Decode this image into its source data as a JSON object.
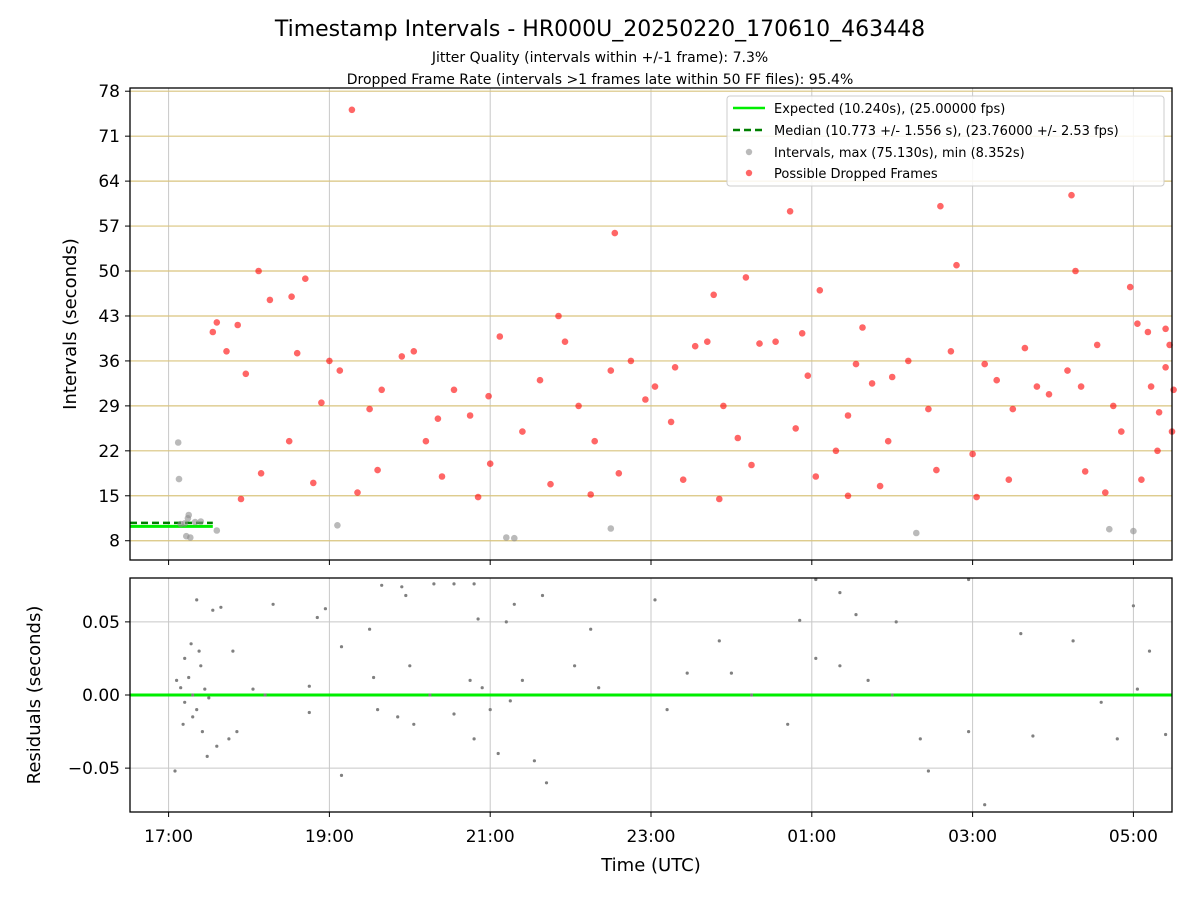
{
  "chart_data": [
    {
      "type": "scatter",
      "title": "Timestamp Intervals - HR000U_20250220_170610_463448",
      "subtitle_lines": [
        "Jitter Quality (intervals within +/-1 frame): 7.3%",
        "Dropped Frame Rate (intervals >1 frames late within 50 FF files): 95.4%"
      ],
      "xlabel": "",
      "ylabel": "Intervals (seconds)",
      "ylim": [
        5,
        78.5
      ],
      "yticks": [
        8,
        15,
        22,
        29,
        36,
        43,
        50,
        57,
        64,
        71,
        78
      ],
      "x_unit": "hours since 17:00 UTC",
      "xlim": [
        -0.48,
        12.48
      ],
      "grid": true,
      "legend_position": "top-right",
      "expected_interval": 10.24,
      "median_interval": 10.773,
      "legend": [
        {
          "label": "Expected (10.240s), (25.00000 fps)",
          "style": "solid-line",
          "color": "#00ee00"
        },
        {
          "label": "Median (10.773 +/- 1.556 s), (23.76000 +/- 2.53 fps)",
          "style": "dashed-line",
          "color": "#008000"
        },
        {
          "label": "Intervals, max (75.130s), min (8.352s)",
          "style": "marker",
          "color": "#8c8c8c"
        },
        {
          "label": "Possible Dropped Frames",
          "style": "marker",
          "color": "#ff0000"
        }
      ],
      "series": [
        {
          "name": "Intervals, max (75.130s), min (8.352s)",
          "color": "#8c8c8c",
          "points": [
            [
              0.12,
              23.3
            ],
            [
              0.13,
              17.6
            ],
            [
              0.25,
              12.0
            ],
            [
              0.24,
              11.5
            ],
            [
              0.22,
              8.7
            ],
            [
              0.27,
              8.5
            ],
            [
              0.15,
              10.6
            ],
            [
              0.2,
              10.7
            ],
            [
              0.33,
              10.9
            ],
            [
              0.4,
              11.0
            ],
            [
              0.6,
              9.6
            ],
            [
              2.1,
              10.4
            ],
            [
              4.2,
              8.5
            ],
            [
              4.3,
              8.4
            ],
            [
              5.5,
              9.9
            ],
            [
              9.3,
              9.2
            ],
            [
              11.7,
              9.8
            ],
            [
              12.0,
              9.5
            ]
          ]
        },
        {
          "name": "Possible Dropped Frames",
          "color": "#ff0000",
          "points": [
            [
              0.55,
              40.5
            ],
            [
              0.6,
              42.0
            ],
            [
              0.72,
              37.5
            ],
            [
              0.86,
              41.6
            ],
            [
              0.96,
              34.0
            ],
            [
              1.12,
              50.0
            ],
            [
              1.26,
              45.5
            ],
            [
              1.5,
              23.5
            ],
            [
              1.53,
              46.0
            ],
            [
              1.6,
              37.2
            ],
            [
              1.7,
              48.8
            ],
            [
              1.9,
              29.5
            ],
            [
              2.0,
              36.0
            ],
            [
              2.13,
              34.5
            ],
            [
              2.28,
              75.1
            ],
            [
              2.5,
              28.5
            ],
            [
              2.65,
              31.5
            ],
            [
              2.9,
              36.7
            ],
            [
              3.05,
              37.5
            ],
            [
              3.2,
              23.5
            ],
            [
              3.35,
              27.0
            ],
            [
              3.55,
              31.5
            ],
            [
              3.75,
              27.5
            ],
            [
              3.98,
              30.5
            ],
            [
              4.12,
              39.8
            ],
            [
              4.4,
              25.0
            ],
            [
              4.62,
              33.0
            ],
            [
              4.85,
              43.0
            ],
            [
              4.93,
              39.0
            ],
            [
              5.1,
              29.0
            ],
            [
              5.3,
              23.5
            ],
            [
              5.5,
              34.5
            ],
            [
              5.55,
              55.9
            ],
            [
              5.75,
              36.0
            ],
            [
              5.93,
              30.0
            ],
            [
              6.05,
              32.0
            ],
            [
              6.25,
              26.5
            ],
            [
              6.3,
              35.0
            ],
            [
              6.55,
              38.3
            ],
            [
              6.7,
              39.0
            ],
            [
              6.78,
              46.3
            ],
            [
              6.9,
              29.0
            ],
            [
              7.08,
              24.0
            ],
            [
              7.18,
              49.0
            ],
            [
              7.35,
              38.7
            ],
            [
              7.55,
              39.0
            ],
            [
              7.73,
              59.3
            ],
            [
              7.8,
              25.5
            ],
            [
              7.88,
              40.3
            ],
            [
              7.95,
              33.7
            ],
            [
              8.1,
              47.0
            ],
            [
              8.3,
              22.0
            ],
            [
              8.45,
              27.5
            ],
            [
              8.55,
              35.5
            ],
            [
              8.63,
              41.2
            ],
            [
              8.75,
              32.5
            ],
            [
              8.95,
              23.5
            ],
            [
              9.0,
              33.5
            ],
            [
              9.2,
              36.0
            ],
            [
              9.45,
              28.5
            ],
            [
              9.6,
              60.1
            ],
            [
              9.73,
              37.5
            ],
            [
              9.8,
              50.9
            ],
            [
              10.0,
              21.5
            ],
            [
              10.15,
              35.5
            ],
            [
              10.3,
              33.0
            ],
            [
              10.5,
              28.5
            ],
            [
              10.65,
              38.0
            ],
            [
              10.8,
              32.0
            ],
            [
              10.95,
              30.8
            ],
            [
              11.18,
              34.5
            ],
            [
              11.23,
              61.8
            ],
            [
              11.28,
              50.0
            ],
            [
              11.35,
              32.0
            ],
            [
              11.55,
              38.5
            ],
            [
              11.75,
              29.0
            ],
            [
              11.85,
              25.0
            ],
            [
              11.96,
              47.5
            ],
            [
              12.05,
              41.8
            ],
            [
              12.18,
              40.5
            ],
            [
              12.22,
              32.0
            ],
            [
              12.32,
              28.0
            ],
            [
              12.4,
              41.0
            ],
            [
              12.45,
              38.5
            ],
            [
              12.5,
              31.5
            ],
            [
              12.4,
              35.0
            ],
            [
              12.48,
              25.0
            ],
            [
              12.3,
              22.0
            ],
            [
              1.15,
              18.5
            ],
            [
              1.8,
              17.0
            ],
            [
              2.6,
              19.0
            ],
            [
              3.4,
              18.0
            ],
            [
              4.0,
              20.0
            ],
            [
              4.75,
              16.8
            ],
            [
              5.6,
              18.5
            ],
            [
              6.4,
              17.5
            ],
            [
              7.25,
              19.8
            ],
            [
              8.05,
              18.0
            ],
            [
              8.85,
              16.5
            ],
            [
              9.55,
              19.0
            ],
            [
              10.45,
              17.5
            ],
            [
              11.4,
              18.8
            ],
            [
              12.1,
              17.5
            ],
            [
              0.9,
              14.5
            ],
            [
              2.35,
              15.5
            ],
            [
              3.85,
              14.8
            ],
            [
              5.25,
              15.2
            ],
            [
              6.85,
              14.5
            ],
            [
              8.45,
              15.0
            ],
            [
              10.05,
              14.8
            ],
            [
              11.65,
              15.5
            ]
          ]
        }
      ]
    },
    {
      "type": "scatter",
      "ylabel": "Residuals (seconds)",
      "xlabel": "Time (UTC)",
      "ylim": [
        -0.08,
        0.08
      ],
      "yticks": [
        -0.05,
        0.0,
        0.05
      ],
      "ytick_labels": [
        "−0.05",
        "0.00",
        "0.05"
      ],
      "xticks": [
        0,
        2,
        4,
        6,
        8,
        10,
        12
      ],
      "xtick_labels": [
        "17:00",
        "19:00",
        "21:00",
        "23:00",
        "01:00",
        "03:00",
        "05:00"
      ],
      "x_unit": "hours since 17:00 UTC",
      "xlim": [
        -0.48,
        12.48
      ],
      "grid": true,
      "zero_line_color": "#00ee00",
      "series": [
        {
          "name": "",
          "color": "#808080",
          "points": [
            [
              0.35,
              0.065
            ],
            [
              0.55,
              0.058
            ],
            [
              0.65,
              0.06
            ],
            [
              1.3,
              0.062
            ],
            [
              1.85,
              0.053
            ],
            [
              1.95,
              0.059
            ],
            [
              2.15,
              0.033
            ],
            [
              2.5,
              0.045
            ],
            [
              2.65,
              0.075
            ],
            [
              2.9,
              0.074
            ],
            [
              2.95,
              0.068
            ],
            [
              3.3,
              0.076
            ],
            [
              3.55,
              0.076
            ],
            [
              3.8,
              0.076
            ],
            [
              3.85,
              0.052
            ],
            [
              4.2,
              0.05
            ],
            [
              4.3,
              0.062
            ],
            [
              4.65,
              0.068
            ],
            [
              5.25,
              0.045
            ],
            [
              6.05,
              0.065
            ],
            [
              7.0,
              0.015
            ],
            [
              7.85,
              0.051
            ],
            [
              8.05,
              0.079
            ],
            [
              8.35,
              0.07
            ],
            [
              8.55,
              0.055
            ],
            [
              9.05,
              0.05
            ],
            [
              9.95,
              0.079
            ],
            [
              10.6,
              0.042
            ],
            [
              11.25,
              0.037
            ],
            [
              12.0,
              0.061
            ],
            [
              0.1,
              0.01
            ],
            [
              0.15,
              0.005
            ],
            [
              0.2,
              -0.005
            ],
            [
              0.25,
              0.012
            ],
            [
              0.3,
              0.0
            ],
            [
              0.35,
              -0.01
            ],
            [
              0.4,
              0.02
            ],
            [
              0.45,
              0.004
            ],
            [
              0.5,
              -0.002
            ],
            [
              0.2,
              0.025
            ],
            [
              0.3,
              -0.015
            ],
            [
              0.38,
              0.03
            ],
            [
              0.18,
              -0.02
            ],
            [
              0.28,
              0.035
            ],
            [
              0.42,
              -0.025
            ],
            [
              0.08,
              -0.052
            ],
            [
              0.48,
              -0.042
            ],
            [
              0.6,
              -0.035
            ],
            [
              0.75,
              -0.03
            ],
            [
              0.85,
              -0.025
            ],
            [
              0.8,
              0.03
            ],
            [
              1.05,
              0.004
            ],
            [
              1.2,
              0.0
            ],
            [
              1.75,
              -0.012
            ],
            [
              1.75,
              0.006
            ],
            [
              2.15,
              -0.055
            ],
            [
              2.55,
              0.012
            ],
            [
              2.6,
              -0.01
            ],
            [
              2.85,
              -0.015
            ],
            [
              3.0,
              0.02
            ],
            [
              3.05,
              -0.02
            ],
            [
              3.25,
              0.0
            ],
            [
              3.55,
              -0.013
            ],
            [
              3.75,
              0.01
            ],
            [
              3.9,
              0.005
            ],
            [
              3.8,
              -0.03
            ],
            [
              4.0,
              -0.01
            ],
            [
              4.1,
              -0.04
            ],
            [
              4.25,
              -0.004
            ],
            [
              4.4,
              0.01
            ],
            [
              4.55,
              -0.045
            ],
            [
              4.7,
              -0.06
            ],
            [
              5.05,
              0.02
            ],
            [
              5.35,
              0.005
            ],
            [
              6.2,
              -0.01
            ],
            [
              6.45,
              0.015
            ],
            [
              6.85,
              0.037
            ],
            [
              7.25,
              0.0
            ],
            [
              7.7,
              -0.02
            ],
            [
              8.05,
              0.025
            ],
            [
              8.35,
              0.02
            ],
            [
              8.7,
              0.01
            ],
            [
              9.0,
              0.0
            ],
            [
              9.35,
              -0.03
            ],
            [
              9.45,
              -0.052
            ],
            [
              9.95,
              -0.025
            ],
            [
              10.15,
              -0.075
            ],
            [
              10.75,
              -0.028
            ],
            [
              11.6,
              -0.005
            ],
            [
              11.8,
              -0.03
            ],
            [
              12.05,
              0.004
            ],
            [
              12.2,
              0.03
            ],
            [
              12.4,
              -0.027
            ]
          ]
        }
      ]
    }
  ]
}
